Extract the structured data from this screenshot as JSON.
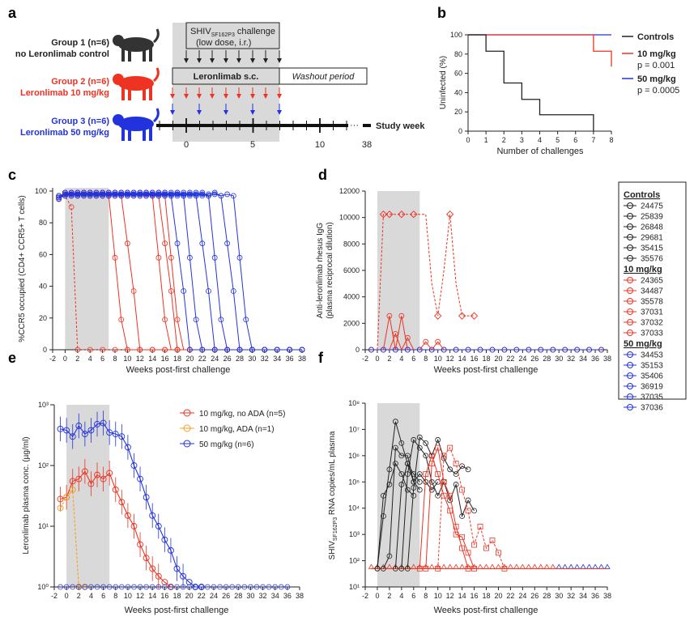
{
  "panel_labels": [
    "a",
    "b",
    "c",
    "d",
    "e",
    "f"
  ],
  "panel_a": {
    "groups": [
      {
        "title": "Group 1 (n=6)",
        "subtitle": "no Leronlimab control",
        "color": "#222222"
      },
      {
        "title": "Group 2 (n=6)",
        "subtitle": "Leronlimab 10 mg/kg",
        "color": "#ee3322"
      },
      {
        "title": "Group 3 (n=6)",
        "subtitle": "Leronlimab 50 mg/kg",
        "color": "#2233dd"
      }
    ],
    "challenge_line1": "SHIV",
    "challenge_sub": "SF162P3",
    "challenge_line1_tail": " challenge",
    "challenge_line2": "(low dose, i.r.)",
    "treatment_label": "Leronlimab s.c.",
    "washout_label": "Washout period",
    "timeline_label": "Study week",
    "timeline_ticks": [
      "0",
      "5",
      "10",
      "38"
    ],
    "ellipsis": "···"
  },
  "chart_data": [
    {
      "id": "b",
      "type": "line",
      "title": "",
      "ylabel": "Uninfected (%)",
      "xlabel": "Number of challenges",
      "xlim": [
        0,
        8
      ],
      "ylim": [
        0,
        100
      ],
      "xticks": [
        "0",
        "1",
        "2",
        "3",
        "4",
        "5",
        "6",
        "7",
        "8"
      ],
      "yticks": [
        "0",
        "20",
        "40",
        "60",
        "80",
        "100"
      ],
      "series": [
        {
          "name": "Controls",
          "color": "#222222",
          "steps": [
            [
              0,
              100
            ],
            [
              1,
              100
            ],
            [
              1,
              83
            ],
            [
              2,
              83
            ],
            [
              2,
              50
            ],
            [
              3,
              50
            ],
            [
              3,
              33
            ],
            [
              4,
              33
            ],
            [
              4,
              17
            ],
            [
              7,
              17
            ],
            [
              7,
              0
            ]
          ]
        },
        {
          "name": "10 mg/kg",
          "pvalue": "p = 0.001",
          "color": "#ee3322",
          "steps": [
            [
              0,
              100
            ],
            [
              7,
              100
            ],
            [
              7,
              83
            ],
            [
              8,
              83
            ],
            [
              8,
              67
            ]
          ]
        },
        {
          "name": "50 mg/kg",
          "pvalue": "p = 0.0005",
          "color": "#2233dd",
          "steps": [
            [
              0,
              100
            ],
            [
              8,
              100
            ]
          ]
        }
      ]
    },
    {
      "id": "c",
      "type": "line",
      "ylabel": "%CCR5 occupied (CD4+ CCR5+ T cells)",
      "xlabel": "Weeks post-first challenge",
      "xlim": [
        -2,
        38
      ],
      "ylim": [
        0,
        100
      ],
      "xticks": [
        "-2",
        "0",
        "2",
        "4",
        "6",
        "8",
        "10",
        "12",
        "14",
        "16",
        "18",
        "20",
        "22",
        "24",
        "26",
        "28",
        "30",
        "32",
        "34",
        "36",
        "38"
      ],
      "yticks": [
        "0",
        "20",
        "40",
        "60",
        "80",
        "100"
      ],
      "shade": [
        0,
        7
      ],
      "series_summary": [
        {
          "group": "10 mg/kg",
          "color": "#ee3322",
          "drop_weeks": [
            1.5,
            10,
            12,
            17,
            18,
            19
          ]
        },
        {
          "group": "50 mg/kg",
          "color": "#2233dd",
          "drop_weeks": [
            20,
            22,
            24,
            26,
            28,
            30
          ]
        }
      ]
    },
    {
      "id": "d",
      "type": "line",
      "ylabel": "Anti-leronlimab rhesus IgG",
      "ylabel2": "(plasma reciprocal dilution)",
      "xlabel": "Weeks post-first challenge",
      "xlim": [
        -2,
        38
      ],
      "ylim": [
        0,
        12000
      ],
      "xticks": [
        "-2",
        "0",
        "2",
        "4",
        "6",
        "8",
        "10",
        "12",
        "14",
        "16",
        "18",
        "20",
        "22",
        "24",
        "26",
        "28",
        "30",
        "32",
        "34",
        "36",
        "38"
      ],
      "yticks": [
        "0",
        "2000",
        "4000",
        "6000",
        "8000",
        "10000",
        "12000"
      ],
      "shade": [
        0,
        7
      ],
      "ada_series": {
        "name": "37032",
        "x": [
          0,
          1,
          2,
          3,
          4,
          5,
          6,
          7,
          8,
          9,
          10,
          11,
          12,
          13,
          14,
          15,
          16
        ],
        "y": [
          0,
          10240,
          10240,
          10240,
          10240,
          10240,
          10240,
          10240,
          10240,
          5000,
          2560,
          6000,
          10240,
          5000,
          2560,
          2560,
          2560
        ]
      },
      "legend": {
        "Controls": [
          "24475",
          "25839",
          "26848",
          "29681",
          "35415",
          "35576"
        ],
        "10 mg/kg": [
          "24365",
          "34487",
          "35578",
          "37031",
          "37032",
          "37033"
        ],
        "50 mg/kg": [
          "34453",
          "35153",
          "35406",
          "36919",
          "37035",
          "37036"
        ]
      }
    },
    {
      "id": "e",
      "type": "line",
      "ylabel": "Leronlimab plasma conc. (µg/ml)",
      "xlabel": "Weeks post-first challenge",
      "xlim": [
        -2,
        38
      ],
      "ylim_log": [
        1,
        1000
      ],
      "xticks": [
        "-2",
        "0",
        "2",
        "4",
        "6",
        "8",
        "10",
        "12",
        "14",
        "16",
        "18",
        "20",
        "22",
        "24",
        "26",
        "28",
        "30",
        "32",
        "34",
        "36",
        "38"
      ],
      "yticks": [
        "10⁰",
        "10¹",
        "10²",
        "10³"
      ],
      "shade": [
        0,
        7
      ],
      "series": [
        {
          "name": "10 mg/kg, no ADA (n=5)",
          "color": "#ee3322",
          "x": [
            -1,
            0,
            1,
            2,
            3,
            4,
            5,
            6,
            7,
            8,
            9,
            10,
            11,
            12,
            13,
            14,
            15,
            16,
            17
          ],
          "y": [
            28,
            30,
            55,
            60,
            80,
            50,
            70,
            60,
            75,
            40,
            25,
            15,
            10,
            5,
            3,
            2,
            1.5,
            1.2,
            1
          ]
        },
        {
          "name": "10 mg/kg, ADA (n=1)",
          "color": "#f0a020",
          "x": [
            -1,
            0,
            1,
            2,
            3
          ],
          "y": [
            20,
            30,
            40,
            1,
            1
          ]
        },
        {
          "name": "50 mg/kg (n=6)",
          "color": "#2233dd",
          "x": [
            -1,
            0,
            1,
            2,
            3,
            4,
            5,
            6,
            7,
            8,
            9,
            10,
            11,
            12,
            13,
            14,
            15,
            16,
            17,
            18,
            19,
            20,
            21,
            22
          ],
          "y": [
            400,
            380,
            300,
            450,
            330,
            380,
            480,
            500,
            350,
            330,
            300,
            200,
            100,
            60,
            30,
            15,
            10,
            6,
            4,
            2,
            1.5,
            1.2,
            1,
            1
          ]
        }
      ]
    },
    {
      "id": "f",
      "type": "line",
      "ylabel_pre": "SHIV",
      "ylabel_sub": "SF162P3",
      "ylabel_post": " RNA copies/mL plasma",
      "xlabel": "Weeks post-first challenge",
      "xlim": [
        -2,
        38
      ],
      "ylim_log": [
        10,
        100000000
      ],
      "xticks": [
        "-2",
        "0",
        "2",
        "4",
        "6",
        "8",
        "10",
        "12",
        "14",
        "16",
        "18",
        "20",
        "22",
        "24",
        "26",
        "28",
        "30",
        "32",
        "34",
        "36",
        "38"
      ],
      "yticks": [
        "10¹",
        "10²",
        "10³",
        "10⁴",
        "10⁵",
        "10⁶",
        "10⁷",
        "10⁸"
      ],
      "shade": [
        0,
        7
      ],
      "detection_limit": 50
    }
  ]
}
